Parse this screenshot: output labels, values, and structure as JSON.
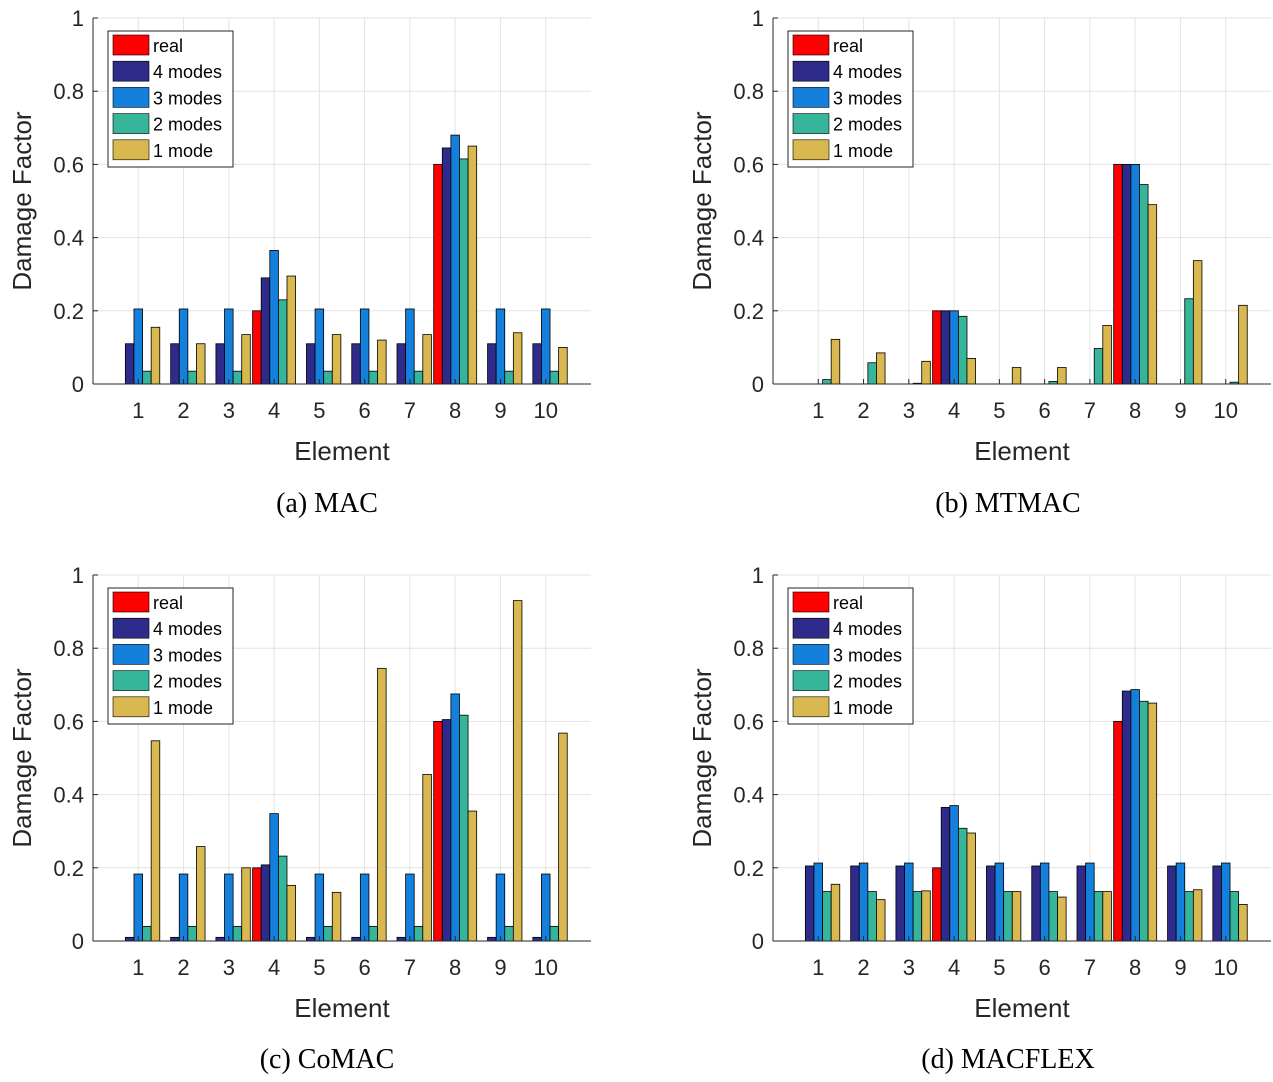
{
  "figure": {
    "colors": {
      "real": "#ff0000",
      "4 modes": "#2e2b8a",
      "3 modes": "#1580dc",
      "2 modes": "#36b59b",
      "1 mode": "#d8b84f",
      "grid": "#e3e3e3",
      "axis": "#262626"
    }
  },
  "chart_data": [
    {
      "type": "bar",
      "caption": "(a) MAC",
      "xlabel": "Element",
      "ylabel": "Damage Factor",
      "ylim": [
        0,
        1
      ],
      "yticks": [
        "0",
        "0.2",
        "0.4",
        "0.6",
        "0.8",
        "1"
      ],
      "categories": [
        "1",
        "2",
        "3",
        "4",
        "5",
        "6",
        "7",
        "8",
        "9",
        "10"
      ],
      "grid": true,
      "legend_location": "top-left",
      "series": [
        {
          "name": "real",
          "values": [
            0,
            0,
            0,
            0.2,
            0,
            0,
            0,
            0.6,
            0,
            0
          ]
        },
        {
          "name": "4 modes",
          "values": [
            0.11,
            0.11,
            0.11,
            0.29,
            0.11,
            0.11,
            0.11,
            0.645,
            0.11,
            0.11
          ]
        },
        {
          "name": "3 modes",
          "values": [
            0.205,
            0.205,
            0.205,
            0.365,
            0.205,
            0.205,
            0.205,
            0.68,
            0.205,
            0.205
          ]
        },
        {
          "name": "2 modes",
          "values": [
            0.035,
            0.035,
            0.035,
            0.23,
            0.035,
            0.035,
            0.035,
            0.615,
            0.035,
            0.035
          ]
        },
        {
          "name": "1 mode",
          "values": [
            0.155,
            0.11,
            0.135,
            0.295,
            0.135,
            0.12,
            0.135,
            0.65,
            0.14,
            0.1
          ]
        }
      ]
    },
    {
      "type": "bar",
      "caption": "(b) MTMAC",
      "xlabel": "Element",
      "ylabel": "Damage Factor",
      "ylim": [
        0,
        1
      ],
      "yticks": [
        "0",
        "0.2",
        "0.4",
        "0.6",
        "0.8",
        "1"
      ],
      "categories": [
        "1",
        "2",
        "3",
        "4",
        "5",
        "6",
        "7",
        "8",
        "9",
        "10"
      ],
      "grid": true,
      "legend_location": "top-left",
      "series": [
        {
          "name": "real",
          "values": [
            0,
            0,
            0,
            0.2,
            0,
            0,
            0,
            0.6,
            0,
            0
          ]
        },
        {
          "name": "4 modes",
          "values": [
            0,
            0,
            0,
            0.2,
            0,
            0,
            0,
            0.6,
            0,
            0
          ]
        },
        {
          "name": "3 modes",
          "values": [
            0,
            0,
            0,
            0.2,
            0,
            0,
            0,
            0.6,
            0,
            0
          ]
        },
        {
          "name": "2 modes",
          "values": [
            0.012,
            0.058,
            0.002,
            0.185,
            0,
            0.007,
            0.097,
            0.545,
            0.233,
            0.005
          ]
        },
        {
          "name": "1 mode",
          "values": [
            0.122,
            0.085,
            0.062,
            0.07,
            0.045,
            0.045,
            0.16,
            0.49,
            0.337,
            0.215
          ]
        }
      ]
    },
    {
      "type": "bar",
      "caption": "(c) CoMAC",
      "xlabel": "Element",
      "ylabel": "Damage Factor",
      "ylim": [
        0,
        1
      ],
      "yticks": [
        "0",
        "0.2",
        "0.4",
        "0.6",
        "0.8",
        "1"
      ],
      "categories": [
        "1",
        "2",
        "3",
        "4",
        "5",
        "6",
        "7",
        "8",
        "9",
        "10"
      ],
      "grid": true,
      "legend_location": "top-left",
      "series": [
        {
          "name": "real",
          "values": [
            0,
            0,
            0,
            0.2,
            0,
            0,
            0,
            0.6,
            0,
            0
          ]
        },
        {
          "name": "4 modes",
          "values": [
            0.01,
            0.01,
            0.01,
            0.208,
            0.01,
            0.01,
            0.01,
            0.605,
            0.01,
            0.01
          ]
        },
        {
          "name": "3 modes",
          "values": [
            0.183,
            0.183,
            0.183,
            0.348,
            0.183,
            0.183,
            0.183,
            0.675,
            0.183,
            0.183
          ]
        },
        {
          "name": "2 modes",
          "values": [
            0.04,
            0.04,
            0.04,
            0.232,
            0.04,
            0.04,
            0.04,
            0.617,
            0.04,
            0.04
          ]
        },
        {
          "name": "1 mode",
          "values": [
            0.547,
            0.258,
            0.2,
            0.152,
            0.133,
            0.745,
            0.455,
            0.355,
            0.93,
            0.568
          ]
        }
      ]
    },
    {
      "type": "bar",
      "caption": "(d) MACFLEX",
      "xlabel": "Element",
      "ylabel": "Damage Factor",
      "ylim": [
        0,
        1
      ],
      "yticks": [
        "0",
        "0.2",
        "0.4",
        "0.6",
        "0.8",
        "1"
      ],
      "categories": [
        "1",
        "2",
        "3",
        "4",
        "5",
        "6",
        "7",
        "8",
        "9",
        "10"
      ],
      "grid": true,
      "legend_location": "top-left",
      "series": [
        {
          "name": "real",
          "values": [
            0,
            0,
            0,
            0.2,
            0,
            0,
            0,
            0.6,
            0,
            0
          ]
        },
        {
          "name": "4 modes",
          "values": [
            0.205,
            0.205,
            0.205,
            0.365,
            0.205,
            0.205,
            0.205,
            0.683,
            0.205,
            0.205
          ]
        },
        {
          "name": "3 modes",
          "values": [
            0.213,
            0.213,
            0.213,
            0.37,
            0.213,
            0.213,
            0.213,
            0.687,
            0.213,
            0.213
          ]
        },
        {
          "name": "2 modes",
          "values": [
            0.135,
            0.135,
            0.135,
            0.308,
            0.135,
            0.135,
            0.135,
            0.655,
            0.135,
            0.135
          ]
        },
        {
          "name": "1 mode",
          "values": [
            0.155,
            0.113,
            0.137,
            0.295,
            0.135,
            0.12,
            0.135,
            0.65,
            0.14,
            0.1
          ]
        }
      ]
    }
  ]
}
